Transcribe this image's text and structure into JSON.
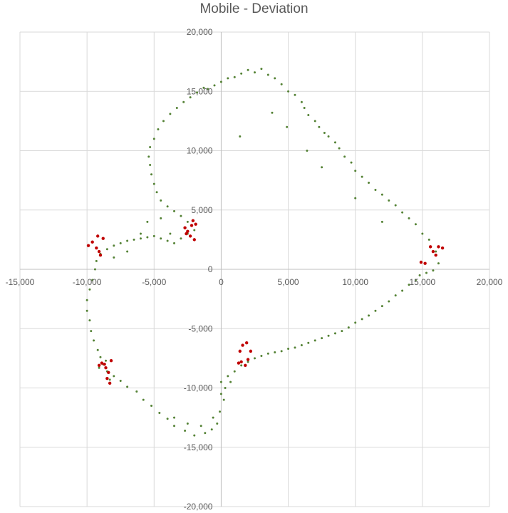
{
  "chart_data": {
    "type": "scatter",
    "title": "Mobile - Deviation",
    "xlabel": "",
    "ylabel": "",
    "xlim": [
      -15000,
      20000
    ],
    "ylim": [
      -20000,
      20000
    ],
    "grid": true,
    "x_ticks": [
      "-15,000",
      "-10,000",
      "-5,000",
      "0",
      "5,000",
      "10,000",
      "15,000",
      "20,000"
    ],
    "y_ticks": [
      "-20,000",
      "-15,000",
      "-10,000",
      "-5,000",
      "0",
      "5,000",
      "10,000",
      "15,000",
      "20,000"
    ],
    "colors": {
      "series1": "#548235",
      "series2": "#c00000",
      "grid": "#d9d9d9",
      "axis": "#bfbfbf",
      "text": "#595959"
    },
    "series": [
      {
        "points": [
          [
            -1000,
            15200
          ],
          [
            -500,
            15500
          ],
          [
            0,
            15800
          ],
          [
            500,
            16100
          ],
          [
            1000,
            16200
          ],
          [
            1500,
            16500
          ],
          [
            2000,
            16800
          ],
          [
            2500,
            16600
          ],
          [
            3000,
            16900
          ],
          [
            3500,
            16400
          ],
          [
            4000,
            16100
          ],
          [
            4500,
            15600
          ],
          [
            5000,
            15000
          ],
          [
            5500,
            14700
          ],
          [
            6000,
            14100
          ],
          [
            6200,
            13600
          ],
          [
            6500,
            13000
          ],
          [
            7000,
            12500
          ],
          [
            7300,
            12000
          ],
          [
            7700,
            11500
          ],
          [
            8000,
            11200
          ],
          [
            8500,
            10700
          ],
          [
            8800,
            10200
          ],
          [
            9200,
            9500
          ],
          [
            9700,
            9000
          ],
          [
            10000,
            8300
          ],
          [
            10500,
            7800
          ],
          [
            11000,
            7300
          ],
          [
            11500,
            6700
          ],
          [
            12000,
            6300
          ],
          [
            12500,
            5800
          ],
          [
            13000,
            5400
          ],
          [
            13500,
            4800
          ],
          [
            14000,
            4300
          ],
          [
            14500,
            3800
          ],
          [
            15000,
            3000
          ],
          [
            15500,
            2500
          ],
          [
            16000,
            1500
          ],
          [
            16200,
            500
          ],
          [
            15800,
            -100
          ],
          [
            15300,
            -300
          ],
          [
            14800,
            -500
          ],
          [
            14500,
            -900
          ],
          [
            14000,
            -1300
          ],
          [
            13500,
            -1800
          ],
          [
            13000,
            -2200
          ],
          [
            12500,
            -2700
          ],
          [
            12000,
            -3100
          ],
          [
            11500,
            -3500
          ],
          [
            11000,
            -3900
          ],
          [
            10500,
            -4200
          ],
          [
            10000,
            -4500
          ],
          [
            9500,
            -4900
          ],
          [
            9000,
            -5200
          ],
          [
            8500,
            -5400
          ],
          [
            8000,
            -5600
          ],
          [
            7500,
            -5800
          ],
          [
            7000,
            -6000
          ],
          [
            6500,
            -6200
          ],
          [
            6000,
            -6400
          ],
          [
            5500,
            -6600
          ],
          [
            5000,
            -6700
          ],
          [
            4500,
            -6900
          ],
          [
            4000,
            -7000
          ],
          [
            3500,
            -7100
          ],
          [
            3000,
            -7300
          ],
          [
            2500,
            -7500
          ],
          [
            2000,
            -7800
          ],
          [
            1500,
            -8100
          ],
          [
            1000,
            -8600
          ],
          [
            500,
            -9000
          ],
          [
            0,
            -9500
          ],
          [
            0,
            -10500
          ],
          [
            200,
            -11000
          ],
          [
            -100,
            -12000
          ],
          [
            -300,
            -13000
          ],
          [
            -700,
            -13500
          ],
          [
            -1200,
            -13800
          ],
          [
            -2000,
            -14000
          ],
          [
            -2700,
            -13600
          ],
          [
            -3500,
            -13200
          ],
          [
            -4000,
            -12600
          ],
          [
            -4600,
            -12100
          ],
          [
            -5200,
            -11500
          ],
          [
            -5800,
            -11000
          ],
          [
            -6300,
            -10300
          ],
          [
            -7000,
            -9900
          ],
          [
            -7500,
            -9400
          ],
          [
            -8000,
            -9000
          ],
          [
            -8500,
            -8600
          ],
          [
            -8800,
            -8000
          ],
          [
            -9000,
            -7400
          ],
          [
            -9200,
            -6800
          ],
          [
            -9500,
            -6000
          ],
          [
            -9700,
            -5200
          ],
          [
            -9800,
            -4300
          ],
          [
            -10000,
            -3500
          ],
          [
            -10000,
            -2600
          ],
          [
            -9800,
            -1700
          ],
          [
            -9600,
            -900
          ],
          [
            -9400,
            0
          ],
          [
            -9300,
            700
          ],
          [
            -9000,
            1300
          ],
          [
            -8500,
            1700
          ],
          [
            -8000,
            2000
          ],
          [
            -7500,
            2200
          ],
          [
            -7000,
            2400
          ],
          [
            -6500,
            2500
          ],
          [
            -6000,
            2600
          ],
          [
            -5500,
            2700
          ],
          [
            -5000,
            2800
          ],
          [
            -4500,
            2600
          ],
          [
            -4000,
            2400
          ],
          [
            -3500,
            2200
          ],
          [
            -3000,
            2600
          ],
          [
            -2500,
            3000
          ],
          [
            -2000,
            3300
          ],
          [
            -2500,
            4000
          ],
          [
            -3000,
            4500
          ],
          [
            -3500,
            4900
          ],
          [
            -4000,
            5300
          ],
          [
            -4500,
            5800
          ],
          [
            -4800,
            6500
          ],
          [
            -5000,
            7200
          ],
          [
            -5200,
            8000
          ],
          [
            -5300,
            8800
          ],
          [
            -5400,
            9500
          ],
          [
            -5300,
            10300
          ],
          [
            -5000,
            11000
          ],
          [
            -4700,
            11800
          ],
          [
            -4300,
            12500
          ],
          [
            -3800,
            13100
          ],
          [
            -3300,
            13600
          ],
          [
            -2800,
            14100
          ],
          [
            -2300,
            14500
          ],
          [
            -1800,
            14900
          ],
          [
            -1300,
            15300
          ],
          [
            1400,
            11200
          ],
          [
            3800,
            13200
          ],
          [
            4900,
            12000
          ],
          [
            6400,
            10000
          ],
          [
            7500,
            8600
          ],
          [
            10000,
            6000
          ],
          [
            12000,
            4000
          ],
          [
            -4500,
            4300
          ],
          [
            -3800,
            3000
          ],
          [
            -5500,
            4000
          ],
          [
            -6000,
            3000
          ],
          [
            -7000,
            1500
          ],
          [
            -8000,
            1000
          ],
          [
            -3500,
            -12500
          ],
          [
            -2500,
            -13000
          ],
          [
            -1500,
            -13200
          ],
          [
            -600,
            -12500
          ],
          [
            300,
            -10000
          ],
          [
            700,
            -9500
          ],
          [
            -8600,
            -7700
          ],
          [
            -9100,
            -8300
          ],
          [
            -8300,
            -9300
          ]
        ]
      },
      {
        "points": [
          [
            -9200,
            2800
          ],
          [
            -8800,
            2600
          ],
          [
            -9600,
            2300
          ],
          [
            -9900,
            2000
          ],
          [
            -9300,
            1800
          ],
          [
            -9100,
            1500
          ],
          [
            -9000,
            1200
          ],
          [
            -2700,
            3500
          ],
          [
            -2500,
            3200
          ],
          [
            -2200,
            3700
          ],
          [
            -2100,
            4100
          ],
          [
            -1900,
            3800
          ],
          [
            -2300,
            2800
          ],
          [
            -2000,
            2500
          ],
          [
            -2600,
            3000
          ],
          [
            15600,
            1900
          ],
          [
            15800,
            1500
          ],
          [
            16000,
            1200
          ],
          [
            16200,
            1900
          ],
          [
            16500,
            1800
          ],
          [
            15200,
            500
          ],
          [
            14900,
            600
          ],
          [
            -8900,
            -7900
          ],
          [
            -8600,
            -8300
          ],
          [
            -8400,
            -8700
          ],
          [
            -8500,
            -9200
          ],
          [
            -8300,
            -9600
          ],
          [
            -8700,
            -8000
          ],
          [
            -8200,
            -7700
          ],
          [
            -9100,
            -8100
          ],
          [
            1600,
            -6400
          ],
          [
            1900,
            -6200
          ],
          [
            1400,
            -6900
          ],
          [
            1500,
            -7800
          ],
          [
            1800,
            -8100
          ],
          [
            2000,
            -7600
          ],
          [
            1300,
            -7900
          ],
          [
            2200,
            -6900
          ]
        ]
      }
    ]
  }
}
